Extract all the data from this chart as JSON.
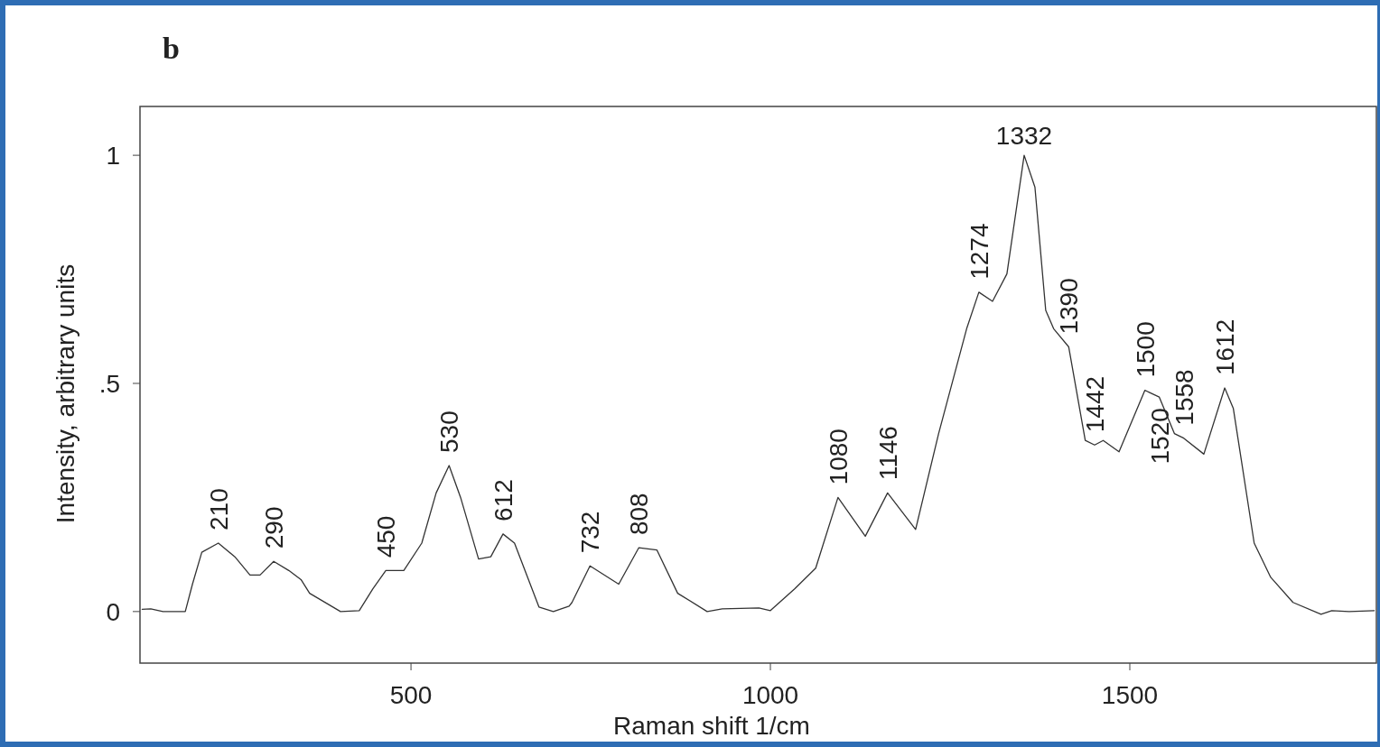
{
  "chart_data": {
    "type": "line",
    "title": "b",
    "xlabel": "Raman shift 1/cm",
    "ylabel": "Intensity, arbitrary units",
    "xlim": [
      123,
      1843
    ],
    "ylim": [
      -0.113,
      1.107
    ],
    "xticks": [
      500,
      1000,
      1500
    ],
    "yticks": [
      0,
      {
        "value": 0.5,
        "label": ".5"
      },
      1
    ],
    "grid": false,
    "marker": "none",
    "line_style": "solid",
    "series": [
      {
        "color": "#333333",
        "x": [
          126,
          138,
          155,
          186,
          196,
          209,
          232,
          255,
          276,
          290,
          309,
          330,
          347,
          359,
          402,
          428,
          447,
          465,
          490,
          515,
          535,
          553,
          569,
          594,
          611,
          628,
          644,
          678,
          698,
          720,
          724,
          749,
          789,
          817,
          842,
          871,
          912,
          933,
          984,
          1000,
          1034,
          1063,
          1094,
          1132,
          1163,
          1202,
          1234,
          1273,
          1290,
          1309,
          1329,
          1353,
          1368,
          1383,
          1394,
          1415,
          1438,
          1451,
          1463,
          1485,
          1521,
          1541,
          1562,
          1575,
          1603,
          1632,
          1644,
          1673,
          1696,
          1727,
          1766,
          1781,
          1805,
          1840
        ],
        "values": [
          0.005,
          0.006,
          0,
          0,
          0.06,
          0.13,
          0.15,
          0.12,
          0.08,
          0.08,
          0.11,
          0.09,
          0.07,
          0.04,
          0,
          0.002,
          0.05,
          0.09,
          0.09,
          0.15,
          0.26,
          0.32,
          0.25,
          0.115,
          0.12,
          0.17,
          0.15,
          0.01,
          0,
          0.012,
          0.02,
          0.1,
          0.06,
          0.14,
          0.135,
          0.04,
          0,
          0.006,
          0.008,
          0.002,
          0.05,
          0.095,
          0.25,
          0.165,
          0.26,
          0.18,
          0.39,
          0.62,
          0.7,
          0.68,
          0.74,
          1.0,
          0.93,
          0.66,
          0.62,
          0.58,
          0.375,
          0.365,
          0.375,
          0.35,
          0.485,
          0.47,
          0.39,
          0.38,
          0.345,
          0.49,
          0.445,
          0.15,
          0.075,
          0.02,
          -0.006,
          0.002,
          0,
          0.002
        ]
      }
    ],
    "annotations": [
      {
        "text": "210",
        "x": 232,
        "y": 0.15
      },
      {
        "text": "290",
        "x": 309,
        "y": 0.11
      },
      {
        "text": "450",
        "x": 465,
        "y": 0.09
      },
      {
        "text": "530",
        "x": 553,
        "y": 0.32
      },
      {
        "text": "612",
        "x": 628,
        "y": 0.17
      },
      {
        "text": "732",
        "x": 749,
        "y": 0.1
      },
      {
        "text": "808",
        "x": 817,
        "y": 0.14
      },
      {
        "text": "1080",
        "x": 1094,
        "y": 0.25
      },
      {
        "text": "1146",
        "x": 1163,
        "y": 0.26
      },
      {
        "text": "1274",
        "x": 1290,
        "y": 0.7
      },
      {
        "text": "1332",
        "x": 1353,
        "y": 1.0
      },
      {
        "text": "1390",
        "x": 1415,
        "y": 0.58
      },
      {
        "text": "1442",
        "x": 1451,
        "y": 0.365
      },
      {
        "text": "1500",
        "x": 1521,
        "y": 0.485
      },
      {
        "text": "1520",
        "x": 1541,
        "y": 0.47
      },
      {
        "text": "1558",
        "x": 1575,
        "y": 0.38
      },
      {
        "text": "1612",
        "x": 1632,
        "y": 0.49
      }
    ]
  }
}
